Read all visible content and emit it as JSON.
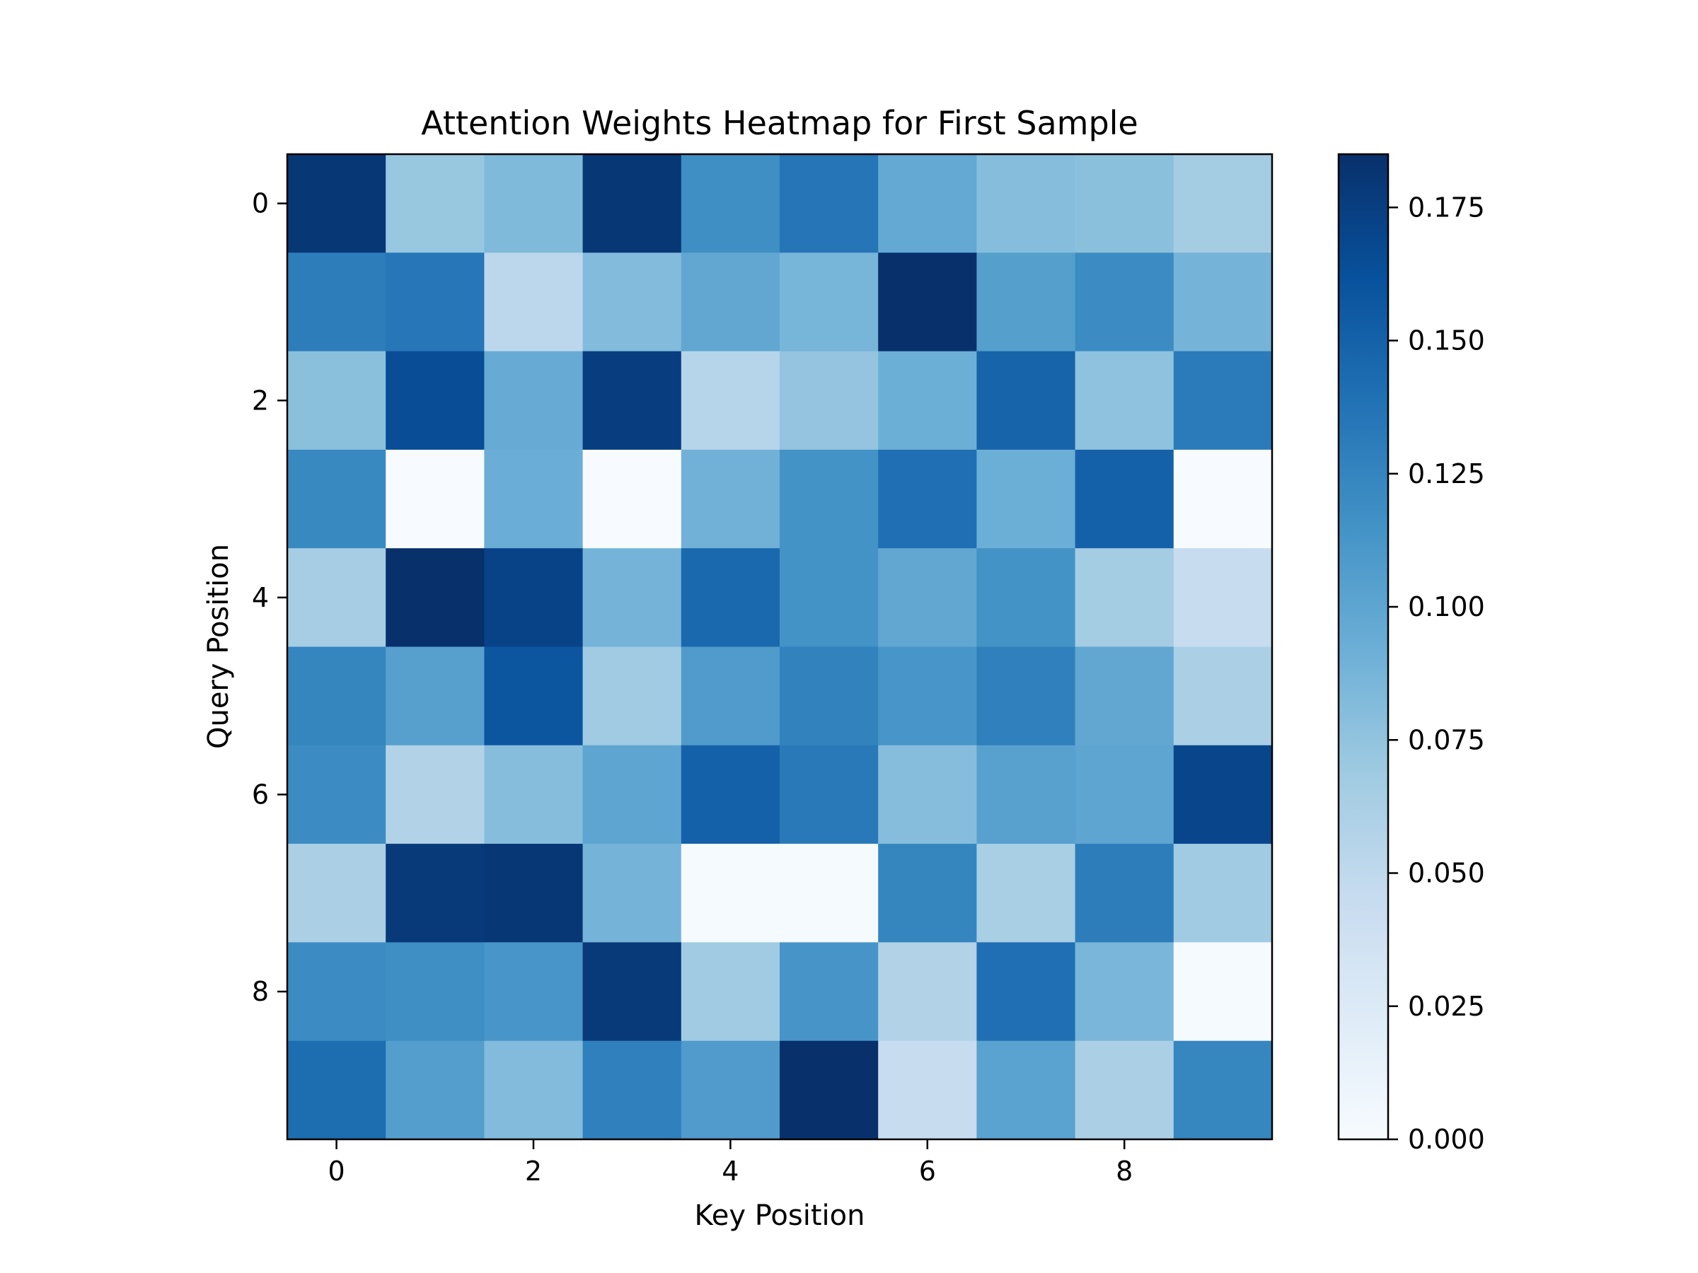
{
  "chart_data": {
    "type": "heatmap",
    "title": "Attention Weights Heatmap for First Sample",
    "xlabel": "Key Position",
    "ylabel": "Query Position",
    "x_ticks": [
      "0",
      "2",
      "4",
      "6",
      "8"
    ],
    "y_ticks": [
      "0",
      "2",
      "4",
      "6",
      "8"
    ],
    "colormap": "Blues",
    "color_range": [
      0.0,
      0.185
    ],
    "colorbar_ticks": [
      "0.000",
      "0.025",
      "0.050",
      "0.075",
      "0.100",
      "0.125",
      "0.150",
      "0.175"
    ],
    "x": [
      0,
      1,
      2,
      3,
      4,
      5,
      6,
      7,
      8,
      9
    ],
    "y": [
      0,
      1,
      2,
      3,
      4,
      5,
      6,
      7,
      8,
      9
    ],
    "values": [
      [
        0.18,
        0.072,
        0.083,
        0.18,
        0.118,
        0.136,
        0.097,
        0.08,
        0.078,
        0.066
      ],
      [
        0.13,
        0.135,
        0.052,
        0.082,
        0.098,
        0.087,
        0.185,
        0.105,
        0.12,
        0.088
      ],
      [
        0.078,
        0.165,
        0.095,
        0.175,
        0.055,
        0.074,
        0.092,
        0.148,
        0.076,
        0.132
      ],
      [
        0.122,
        0.0,
        0.093,
        0.0,
        0.09,
        0.115,
        0.14,
        0.092,
        0.15,
        0.0
      ],
      [
        0.065,
        0.185,
        0.172,
        0.088,
        0.145,
        0.115,
        0.098,
        0.115,
        0.066,
        0.045
      ],
      [
        0.125,
        0.104,
        0.158,
        0.068,
        0.108,
        0.127,
        0.112,
        0.128,
        0.098,
        0.062
      ],
      [
        0.12,
        0.058,
        0.08,
        0.1,
        0.15,
        0.133,
        0.08,
        0.103,
        0.1,
        0.17
      ],
      [
        0.062,
        0.178,
        0.18,
        0.088,
        0.002,
        0.002,
        0.125,
        0.063,
        0.13,
        0.068
      ],
      [
        0.12,
        0.118,
        0.112,
        0.178,
        0.068,
        0.113,
        0.058,
        0.14,
        0.086,
        0.002
      ],
      [
        0.142,
        0.106,
        0.082,
        0.128,
        0.108,
        0.185,
        0.045,
        0.102,
        0.062,
        0.124
      ]
    ]
  }
}
